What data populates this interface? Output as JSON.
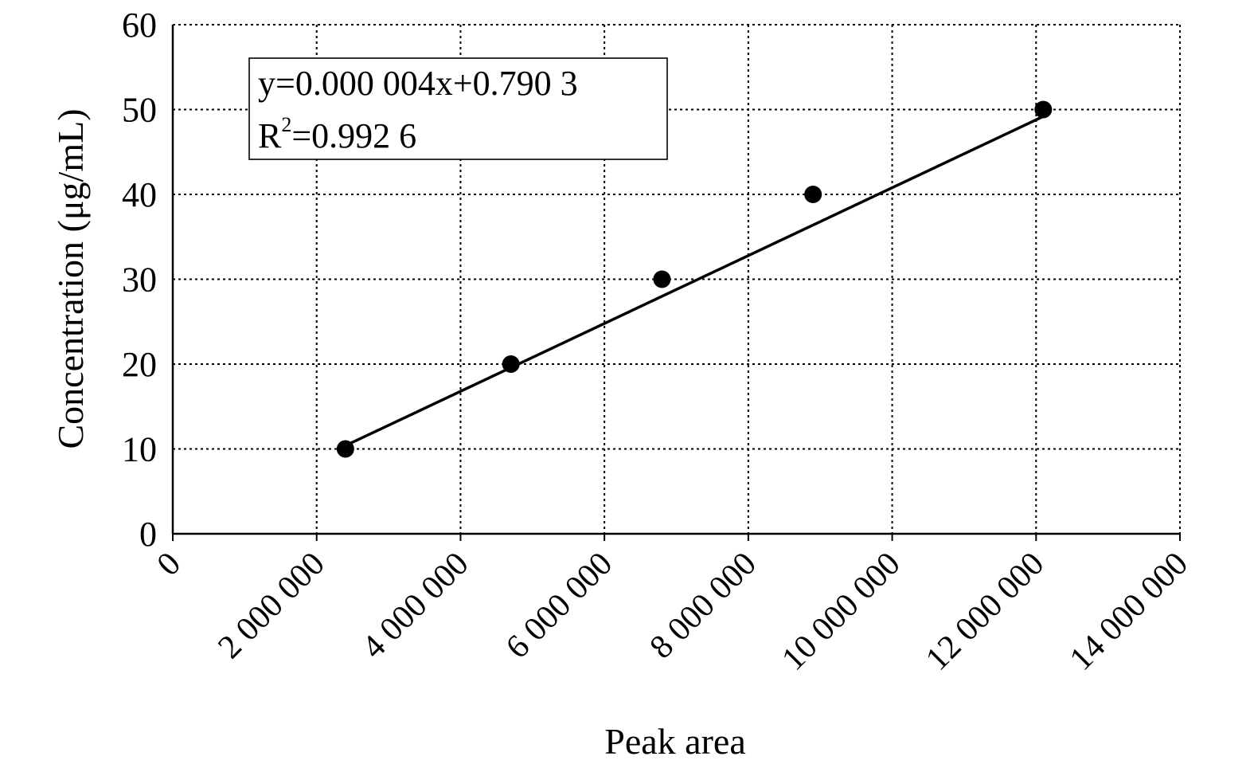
{
  "chart_data": {
    "type": "scatter",
    "xlabel": "Peak area",
    "ylabel": "Concentration (μg/mL)",
    "xlim": [
      0,
      14000000
    ],
    "ylim": [
      0,
      60
    ],
    "x_ticks": [
      0,
      2000000,
      4000000,
      6000000,
      8000000,
      10000000,
      12000000,
      14000000
    ],
    "x_tick_labels": [
      "0",
      "2 000 000",
      "4 000 000",
      "6 000 000",
      "8 000 000",
      "10 000 000",
      "12 000 000",
      "14 000 000"
    ],
    "y_ticks": [
      0,
      10,
      20,
      30,
      40,
      50,
      60
    ],
    "y_tick_labels": [
      "0",
      "10",
      "20",
      "30",
      "40",
      "50",
      "60"
    ],
    "grid": true,
    "grid_style": "dotted",
    "points": [
      {
        "x": 2400000,
        "y": 10
      },
      {
        "x": 4700000,
        "y": 20
      },
      {
        "x": 6800000,
        "y": 30
      },
      {
        "x": 8900000,
        "y": 40
      },
      {
        "x": 12100000,
        "y": 50
      }
    ],
    "trendline": {
      "slope": 4e-06,
      "intercept": 0.7903,
      "x_range": [
        2400000,
        12100000
      ]
    },
    "annotation": {
      "equation": "y=0.000 004x+0.790 3",
      "r2_prefix": "R",
      "r2_sup": "2",
      "r2_value": "=0.992 6"
    },
    "colors": {
      "marker": "#000000",
      "line": "#000000",
      "grid": "#000000"
    }
  }
}
